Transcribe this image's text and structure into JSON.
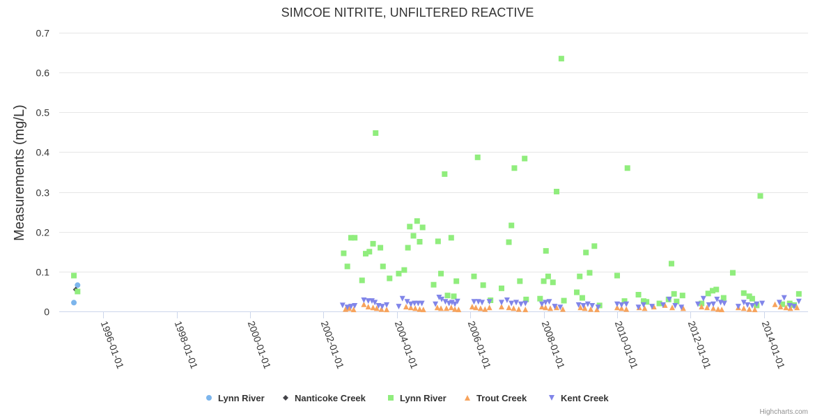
{
  "chart_data": {
    "type": "scatter",
    "title": "SIMCOE NITRITE, UNFILTERED REACTIVE",
    "xlabel": "",
    "ylabel": "Measurements (mg/L)",
    "ylim": [
      0,
      0.7
    ],
    "yticks": [
      "0",
      "0.1",
      "0.2",
      "0.3",
      "0.4",
      "0.5",
      "0.6",
      "0.7"
    ],
    "xlim_years": [
      1994.8,
      2015.2
    ],
    "xticks": [
      {
        "label": "1996-01-01",
        "year": 1996
      },
      {
        "label": "1998-01-01",
        "year": 1998
      },
      {
        "label": "2000-01-01",
        "year": 2000
      },
      {
        "label": "2002-01-01",
        "year": 2002
      },
      {
        "label": "2004-01-01",
        "year": 2004
      },
      {
        "label": "2006-01-01",
        "year": 2006
      },
      {
        "label": "2008-01-01",
        "year": 2008
      },
      {
        "label": "2010-01-01",
        "year": 2010
      },
      {
        "label": "2012-01-01",
        "year": 2012
      },
      {
        "label": "2014-01-01",
        "year": 2014
      }
    ],
    "series": [
      {
        "name": "Lynn River",
        "color": "#7cb5ec",
        "marker": "circle",
        "points": [
          [
            1995.2,
            0.022
          ],
          [
            1995.3,
            0.066
          ]
        ]
      },
      {
        "name": "Nanticoke Creek",
        "color": "#434348",
        "marker": "diamond",
        "points": [
          [
            1995.25,
            0.055
          ]
        ]
      },
      {
        "name": "Lynn River",
        "color": "#90ed7d",
        "marker": "square",
        "points": [
          [
            1995.2,
            0.09
          ],
          [
            1995.3,
            0.05
          ],
          [
            2002.55,
            0.146
          ],
          [
            2002.65,
            0.113
          ],
          [
            2002.75,
            0.185
          ],
          [
            2002.85,
            0.185
          ],
          [
            2003.05,
            0.078
          ],
          [
            2003.15,
            0.145
          ],
          [
            2003.25,
            0.15
          ],
          [
            2003.35,
            0.17
          ],
          [
            2003.42,
            0.448
          ],
          [
            2003.55,
            0.16
          ],
          [
            2003.62,
            0.113
          ],
          [
            2003.8,
            0.083
          ],
          [
            2004.05,
            0.095
          ],
          [
            2004.2,
            0.104
          ],
          [
            2004.3,
            0.16
          ],
          [
            2004.35,
            0.213
          ],
          [
            2004.45,
            0.19
          ],
          [
            2004.55,
            0.227
          ],
          [
            2004.62,
            0.175
          ],
          [
            2004.7,
            0.211
          ],
          [
            2005.0,
            0.067
          ],
          [
            2005.12,
            0.176
          ],
          [
            2005.2,
            0.095
          ],
          [
            2005.3,
            0.345
          ],
          [
            2005.38,
            0.04
          ],
          [
            2005.48,
            0.185
          ],
          [
            2005.55,
            0.038
          ],
          [
            2005.62,
            0.076
          ],
          [
            2006.1,
            0.088
          ],
          [
            2006.2,
            0.387
          ],
          [
            2006.35,
            0.066
          ],
          [
            2006.55,
            0.028
          ],
          [
            2006.85,
            0.058
          ],
          [
            2007.05,
            0.174
          ],
          [
            2007.12,
            0.216
          ],
          [
            2007.2,
            0.36
          ],
          [
            2007.35,
            0.076
          ],
          [
            2007.48,
            0.384
          ],
          [
            2007.52,
            0.03
          ],
          [
            2007.9,
            0.032
          ],
          [
            2008.0,
            0.076
          ],
          [
            2008.06,
            0.152
          ],
          [
            2008.12,
            0.088
          ],
          [
            2008.25,
            0.073
          ],
          [
            2008.35,
            0.301
          ],
          [
            2008.48,
            0.635
          ],
          [
            2008.55,
            0.027
          ],
          [
            2008.9,
            0.048
          ],
          [
            2008.98,
            0.088
          ],
          [
            2009.05,
            0.034
          ],
          [
            2009.15,
            0.148
          ],
          [
            2009.25,
            0.097
          ],
          [
            2009.38,
            0.164
          ],
          [
            2009.52,
            0.015
          ],
          [
            2010.0,
            0.09
          ],
          [
            2010.2,
            0.026
          ],
          [
            2010.28,
            0.36
          ],
          [
            2010.58,
            0.042
          ],
          [
            2010.72,
            0.026
          ],
          [
            2010.8,
            0.024
          ],
          [
            2011.15,
            0.02
          ],
          [
            2011.4,
            0.03
          ],
          [
            2011.48,
            0.12
          ],
          [
            2011.55,
            0.044
          ],
          [
            2011.62,
            0.025
          ],
          [
            2011.78,
            0.04
          ],
          [
            2012.3,
            0.02
          ],
          [
            2012.48,
            0.045
          ],
          [
            2012.6,
            0.052
          ],
          [
            2012.7,
            0.055
          ],
          [
            2012.9,
            0.034
          ],
          [
            2013.15,
            0.097
          ],
          [
            2013.45,
            0.046
          ],
          [
            2013.6,
            0.038
          ],
          [
            2013.68,
            0.032
          ],
          [
            2013.8,
            0.015
          ],
          [
            2013.9,
            0.29
          ],
          [
            2014.5,
            0.018
          ],
          [
            2014.7,
            0.02
          ],
          [
            2014.82,
            0.016
          ],
          [
            2014.95,
            0.044
          ]
        ]
      },
      {
        "name": "Trout Creek",
        "color": "#f7a35c",
        "marker": "triangle",
        "points": [
          [
            2002.6,
            0.006
          ],
          [
            2002.7,
            0.008
          ],
          [
            2002.82,
            0.005
          ],
          [
            2003.1,
            0.018
          ],
          [
            2003.22,
            0.012
          ],
          [
            2003.35,
            0.01
          ],
          [
            2003.45,
            0.008
          ],
          [
            2003.58,
            0.006
          ],
          [
            2003.72,
            0.005
          ],
          [
            2004.25,
            0.012
          ],
          [
            2004.38,
            0.01
          ],
          [
            2004.5,
            0.008
          ],
          [
            2004.62,
            0.006
          ],
          [
            2004.72,
            0.005
          ],
          [
            2005.1,
            0.01
          ],
          [
            2005.2,
            0.008
          ],
          [
            2005.35,
            0.008
          ],
          [
            2005.48,
            0.01
          ],
          [
            2005.58,
            0.006
          ],
          [
            2005.68,
            0.005
          ],
          [
            2006.05,
            0.012
          ],
          [
            2006.15,
            0.01
          ],
          [
            2006.28,
            0.008
          ],
          [
            2006.4,
            0.006
          ],
          [
            2006.52,
            0.01
          ],
          [
            2006.85,
            0.012
          ],
          [
            2007.05,
            0.01
          ],
          [
            2007.18,
            0.008
          ],
          [
            2007.32,
            0.006
          ],
          [
            2007.5,
            0.005
          ],
          [
            2007.95,
            0.012
          ],
          [
            2008.05,
            0.01
          ],
          [
            2008.18,
            0.008
          ],
          [
            2008.35,
            0.01
          ],
          [
            2008.52,
            0.006
          ],
          [
            2009.0,
            0.01
          ],
          [
            2009.12,
            0.008
          ],
          [
            2009.28,
            0.006
          ],
          [
            2009.45,
            0.005
          ],
          [
            2010.0,
            0.01
          ],
          [
            2010.12,
            0.008
          ],
          [
            2010.25,
            0.006
          ],
          [
            2010.6,
            0.01
          ],
          [
            2010.75,
            0.008
          ],
          [
            2011.0,
            0.012
          ],
          [
            2011.3,
            0.016
          ],
          [
            2011.5,
            0.01
          ],
          [
            2011.8,
            0.008
          ],
          [
            2012.3,
            0.012
          ],
          [
            2012.45,
            0.01
          ],
          [
            2012.62,
            0.008
          ],
          [
            2012.75,
            0.006
          ],
          [
            2012.85,
            0.005
          ],
          [
            2013.3,
            0.01
          ],
          [
            2013.45,
            0.008
          ],
          [
            2013.6,
            0.006
          ],
          [
            2013.75,
            0.005
          ],
          [
            2014.3,
            0.018
          ],
          [
            2014.45,
            0.012
          ],
          [
            2014.6,
            0.01
          ],
          [
            2014.72,
            0.008
          ],
          [
            2014.9,
            0.01
          ]
        ]
      },
      {
        "name": "Kent Creek",
        "color": "#8085e9",
        "marker": "triangle-down",
        "points": [
          [
            2002.52,
            0.015
          ],
          [
            2002.65,
            0.01
          ],
          [
            2002.75,
            0.012
          ],
          [
            2002.85,
            0.014
          ],
          [
            2003.1,
            0.028
          ],
          [
            2003.22,
            0.026
          ],
          [
            2003.32,
            0.026
          ],
          [
            2003.4,
            0.022
          ],
          [
            2003.5,
            0.014
          ],
          [
            2003.6,
            0.012
          ],
          [
            2003.72,
            0.016
          ],
          [
            2004.05,
            0.012
          ],
          [
            2004.15,
            0.032
          ],
          [
            2004.28,
            0.024
          ],
          [
            2004.38,
            0.018
          ],
          [
            2004.48,
            0.02
          ],
          [
            2004.58,
            0.02
          ],
          [
            2004.68,
            0.02
          ],
          [
            2005.05,
            0.018
          ],
          [
            2005.15,
            0.035
          ],
          [
            2005.22,
            0.03
          ],
          [
            2005.32,
            0.024
          ],
          [
            2005.42,
            0.02
          ],
          [
            2005.5,
            0.022
          ],
          [
            2005.58,
            0.018
          ],
          [
            2005.65,
            0.025
          ],
          [
            2006.1,
            0.024
          ],
          [
            2006.22,
            0.024
          ],
          [
            2006.32,
            0.022
          ],
          [
            2006.52,
            0.024
          ],
          [
            2006.85,
            0.022
          ],
          [
            2007.0,
            0.028
          ],
          [
            2007.12,
            0.02
          ],
          [
            2007.25,
            0.022
          ],
          [
            2007.38,
            0.018
          ],
          [
            2007.5,
            0.02
          ],
          [
            2007.95,
            0.018
          ],
          [
            2008.05,
            0.022
          ],
          [
            2008.15,
            0.024
          ],
          [
            2008.3,
            0.012
          ],
          [
            2008.45,
            0.01
          ],
          [
            2008.95,
            0.016
          ],
          [
            2009.08,
            0.014
          ],
          [
            2009.2,
            0.018
          ],
          [
            2009.32,
            0.014
          ],
          [
            2009.48,
            0.01
          ],
          [
            2010.0,
            0.018
          ],
          [
            2010.12,
            0.016
          ],
          [
            2010.25,
            0.018
          ],
          [
            2010.58,
            0.01
          ],
          [
            2010.72,
            0.016
          ],
          [
            2010.95,
            0.012
          ],
          [
            2011.25,
            0.016
          ],
          [
            2011.42,
            0.03
          ],
          [
            2011.58,
            0.014
          ],
          [
            2011.75,
            0.01
          ],
          [
            2012.2,
            0.018
          ],
          [
            2012.35,
            0.032
          ],
          [
            2012.5,
            0.016
          ],
          [
            2012.62,
            0.018
          ],
          [
            2012.72,
            0.03
          ],
          [
            2012.82,
            0.022
          ],
          [
            2012.92,
            0.02
          ],
          [
            2013.3,
            0.012
          ],
          [
            2013.45,
            0.022
          ],
          [
            2013.55,
            0.016
          ],
          [
            2013.68,
            0.014
          ],
          [
            2013.8,
            0.018
          ],
          [
            2013.95,
            0.02
          ],
          [
            2014.42,
            0.022
          ],
          [
            2014.55,
            0.034
          ],
          [
            2014.7,
            0.014
          ],
          [
            2014.82,
            0.012
          ],
          [
            2014.95,
            0.025
          ]
        ]
      }
    ],
    "legend": [
      "Lynn River",
      "Nanticoke Creek",
      "Lynn River",
      "Trout Creek",
      "Kent Creek"
    ],
    "legend_position": "bottom-center",
    "grid": true
  },
  "credits": "Highcharts.com"
}
